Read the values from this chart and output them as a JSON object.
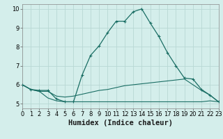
{
  "xlabel": "Humidex (Indice chaleur)",
  "bg_color": "#d4eeeb",
  "grid_color": "#b8d8d4",
  "line_color": "#1a6e64",
  "line1_x": [
    0,
    1,
    2,
    3,
    4,
    5,
    6,
    7,
    8,
    9,
    10,
    11,
    12,
    13,
    14,
    15,
    16,
    17,
    18,
    19,
    20,
    21,
    22,
    23
  ],
  "line1_y": [
    6.0,
    5.75,
    5.7,
    5.7,
    5.25,
    5.1,
    5.1,
    6.5,
    7.55,
    8.05,
    8.75,
    9.35,
    9.35,
    9.85,
    10.0,
    9.25,
    8.55,
    7.7,
    7.0,
    6.35,
    6.3,
    5.75,
    5.45,
    5.1
  ],
  "line2_x": [
    0,
    1,
    2,
    3,
    4,
    5,
    6,
    7,
    8,
    9,
    10,
    11,
    12,
    13,
    14,
    15,
    16,
    17,
    18,
    19,
    20,
    21,
    22,
    23
  ],
  "line2_y": [
    6.0,
    5.75,
    5.65,
    5.65,
    5.4,
    5.35,
    5.4,
    5.5,
    5.6,
    5.7,
    5.75,
    5.85,
    5.95,
    6.0,
    6.05,
    6.1,
    6.15,
    6.2,
    6.25,
    6.3,
    6.0,
    5.7,
    5.45,
    5.1
  ],
  "line3_x": [
    0,
    1,
    2,
    3,
    4,
    5,
    6,
    7,
    8,
    9,
    10,
    11,
    12,
    13,
    14,
    15,
    16,
    17,
    18,
    19,
    20,
    21,
    22,
    23
  ],
  "line3_y": [
    6.0,
    5.75,
    5.65,
    5.3,
    5.15,
    5.1,
    5.1,
    5.1,
    5.1,
    5.1,
    5.1,
    5.1,
    5.1,
    5.1,
    5.1,
    5.1,
    5.1,
    5.1,
    5.1,
    5.1,
    5.1,
    5.1,
    5.15,
    5.1
  ],
  "xlim": [
    0,
    23
  ],
  "ylim": [
    4.75,
    10.25
  ],
  "yticks": [
    5,
    6,
    7,
    8,
    9,
    10
  ],
  "xticks": [
    0,
    1,
    2,
    3,
    4,
    5,
    6,
    7,
    8,
    9,
    10,
    11,
    12,
    13,
    14,
    15,
    16,
    17,
    18,
    19,
    20,
    21,
    22,
    23
  ],
  "xlabel_fontsize": 7.5,
  "tick_fontsize": 6.0
}
